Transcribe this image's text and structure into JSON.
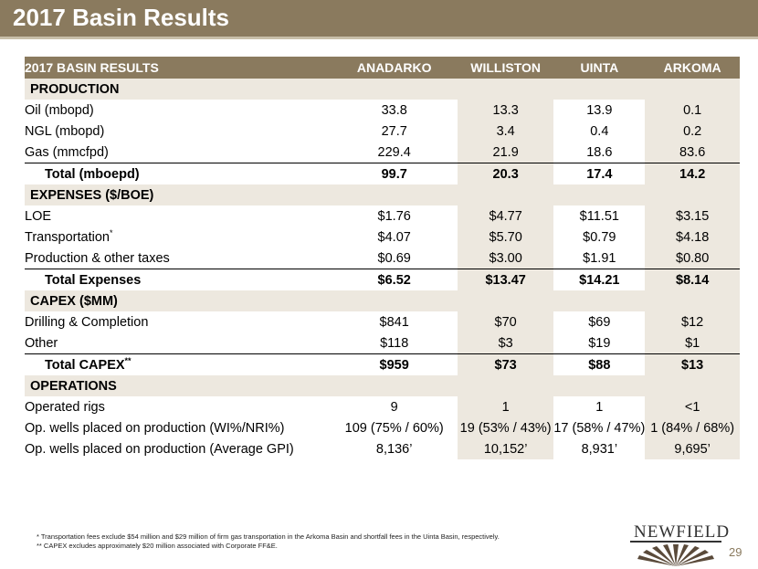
{
  "title": "2017 Basin Results",
  "table": {
    "header": [
      "2017 BASIN RESULTS",
      "ANADARKO",
      "WILLISTON",
      "UINTA",
      "ARKOMA"
    ],
    "sections": [
      {
        "name": "PRODUCTION",
        "rows": [
          {
            "label": "Oil (mbopd)",
            "values": [
              "33.8",
              "13.3",
              "13.9",
              "0.1"
            ]
          },
          {
            "label": "NGL (mbopd)",
            "values": [
              "27.7",
              "3.4",
              "0.4",
              "0.2"
            ]
          },
          {
            "label": "Gas (mmcfpd)",
            "values": [
              "229.4",
              "21.9",
              "18.6",
              "83.6"
            ]
          }
        ],
        "total": {
          "label": "Total (mboepd)",
          "values": [
            "99.7",
            "20.3",
            "17.4",
            "14.2"
          ]
        }
      },
      {
        "name": "EXPENSES ($/BOE)",
        "rows": [
          {
            "label": "LOE",
            "values": [
              "$1.76",
              "$4.77",
              "$11.51",
              "$3.15"
            ]
          },
          {
            "label": "Transportation",
            "sup": "*",
            "values": [
              "$4.07",
              "$5.70",
              "$0.79",
              "$4.18"
            ]
          },
          {
            "label": "Production & other taxes",
            "values": [
              "$0.69",
              "$3.00",
              "$1.91",
              "$0.80"
            ]
          }
        ],
        "total": {
          "label": "Total Expenses",
          "values": [
            "$6.52",
            "$13.47",
            "$14.21",
            "$8.14"
          ]
        }
      },
      {
        "name": "CAPEX ($MM)",
        "rows": [
          {
            "label": "Drilling & Completion",
            "values": [
              "$841",
              "$70",
              "$69",
              "$12"
            ]
          },
          {
            "label": "Other",
            "values": [
              "$118",
              "$3",
              "$19",
              "$1"
            ]
          }
        ],
        "total": {
          "label": "Total CAPEX",
          "sup": "**",
          "values": [
            "$959",
            "$73",
            "$88",
            "$13"
          ]
        }
      },
      {
        "name": "OPERATIONS",
        "rows": [
          {
            "label": "Operated rigs",
            "values": [
              "9",
              "1",
              "1",
              "<1"
            ]
          },
          {
            "label": "Op. wells placed on production (WI%/NRI%)",
            "values": [
              "109 (75% / 60%)",
              "19 (53% / 43%)",
              "17 (58% / 47%)",
              "1 (84% / 68%)"
            ]
          },
          {
            "label": "Op. wells placed on production (Average GPI)",
            "values": [
              "8,136’",
              "10,152’",
              "8,931’",
              "9,695’"
            ]
          }
        ]
      }
    ]
  },
  "footnotes": [
    "* Transportation fees exclude $54 million and $29 million of firm gas transportation in the Arkoma Basin and shortfall fees in the Uinta Basin, respectively.",
    "** CAPEX excludes approximately $20 million associated with Corporate FF&E."
  ],
  "logo": "NEWFIELD",
  "page_number": "29",
  "colors": {
    "accent": "#8a7a5e",
    "shade": "#ede8df",
    "rule": "#c8bfa9"
  }
}
